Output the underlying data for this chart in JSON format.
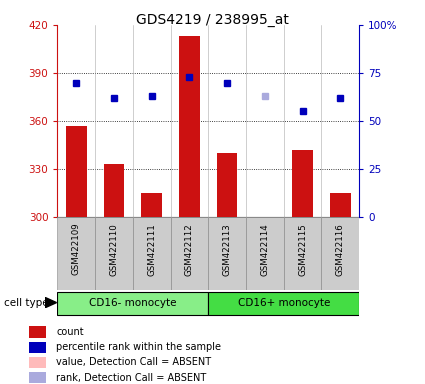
{
  "title": "GDS4219 / 238995_at",
  "samples": [
    "GSM422109",
    "GSM422110",
    "GSM422111",
    "GSM422112",
    "GSM422113",
    "GSM422114",
    "GSM422115",
    "GSM422116"
  ],
  "counts": [
    357,
    333,
    315,
    413,
    340,
    300,
    342,
    315
  ],
  "pct_values": [
    70,
    62,
    63,
    73,
    70,
    63,
    55,
    62
  ],
  "absent_mask": [
    false,
    false,
    false,
    false,
    false,
    true,
    false,
    false
  ],
  "ylim_left": [
    300,
    420
  ],
  "ylim_right": [
    0,
    100
  ],
  "yticks_left": [
    300,
    330,
    360,
    390,
    420
  ],
  "yticks_right": [
    0,
    25,
    50,
    75,
    100
  ],
  "bar_color": "#cc1111",
  "dot_color": "#0000bb",
  "dot_absent_color": "#aaaadd",
  "bar_absent_color": "#ffbbbb",
  "groups": [
    {
      "label": "CD16- monocyte",
      "start": 0,
      "end": 4,
      "color": "#88ee88"
    },
    {
      "label": "CD16+ monocyte",
      "start": 4,
      "end": 8,
      "color": "#44dd44"
    }
  ],
  "legend_items": [
    {
      "label": "count",
      "color": "#cc1111"
    },
    {
      "label": "percentile rank within the sample",
      "color": "#0000bb"
    },
    {
      "label": "value, Detection Call = ABSENT",
      "color": "#ffbbbb"
    },
    {
      "label": "rank, Detection Call = ABSENT",
      "color": "#aaaadd"
    }
  ],
  "cell_type_label": "cell type",
  "left_axis_color": "#cc1111",
  "right_axis_color": "#0000bb",
  "xlabel_bg_color": "#cccccc",
  "xlabel_border_color": "#999999"
}
